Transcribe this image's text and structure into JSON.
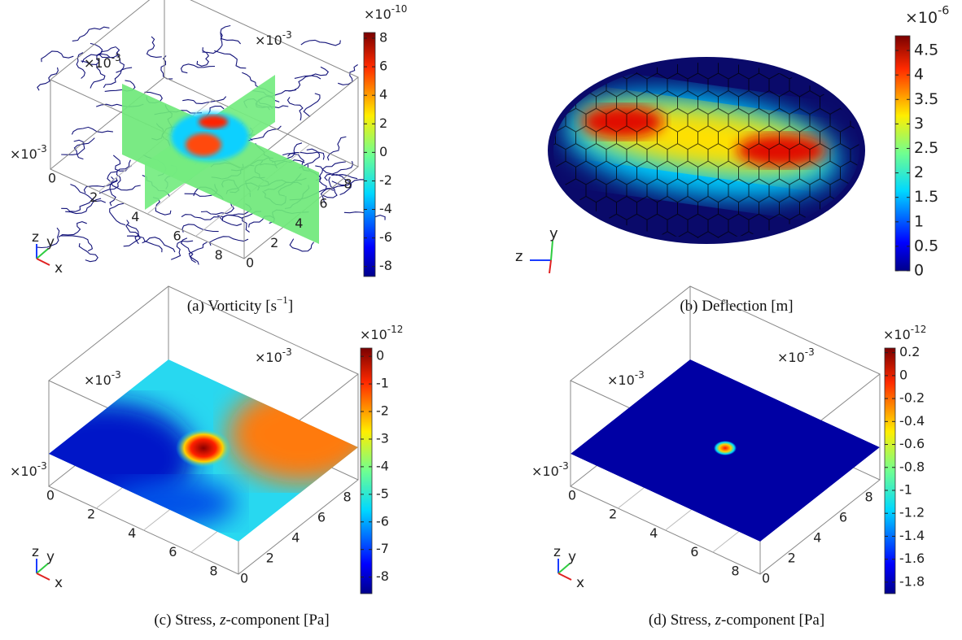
{
  "panels": [
    {
      "caption": [
        {
          "text": "(a) Vorticity [s"
        },
        {
          "text": "−1",
          "sup": true
        },
        {
          "text": "]"
        }
      ],
      "colorbar": {
        "base": "×10",
        "exponent": "-10",
        "clim": [
          -8.7,
          8.4
        ],
        "ticks": [
          8,
          6,
          4,
          2,
          0,
          -2,
          -4,
          -6,
          -8
        ]
      },
      "axis_exponents": [
        {
          "base": "×10",
          "exponent": "-3"
        },
        {
          "base": "×10",
          "exponent": "-3"
        },
        {
          "base": "×10",
          "exponent": "-3"
        }
      ],
      "x_ticks": [
        0,
        2,
        4,
        6,
        8
      ],
      "y_ticks": [
        0,
        2,
        4,
        6,
        8
      ],
      "triad": [
        "z",
        "y",
        "x"
      ]
    },
    {
      "caption": [
        {
          "text": "(b) Deflection [m]"
        }
      ],
      "colorbar": {
        "base": "×10",
        "exponent": "-6",
        "clim": [
          0,
          4.8
        ],
        "ticks": [
          4.5,
          4,
          3.5,
          3,
          2.5,
          2,
          1.5,
          1,
          0.5,
          0
        ]
      },
      "triad": [
        "z",
        "y"
      ]
    },
    {
      "caption": [
        {
          "text": "(c) Stress, "
        },
        {
          "text": "z",
          "italic": true
        },
        {
          "text": "-component [Pa]"
        }
      ],
      "colorbar": {
        "base": "×10",
        "exponent": "-12",
        "clim": [
          -8.6,
          0.3
        ],
        "ticks": [
          0,
          -1,
          -2,
          -3,
          -4,
          -5,
          -6,
          -7,
          -8
        ]
      },
      "axis_exponents": [
        {
          "base": "×10",
          "exponent": "-3"
        },
        {
          "base": "×10",
          "exponent": "-3"
        },
        {
          "base": "×10",
          "exponent": "-3"
        }
      ],
      "x_ticks": [
        0,
        2,
        4,
        6,
        8
      ],
      "y_ticks": [
        0,
        2,
        4,
        6,
        8
      ],
      "triad": [
        "z",
        "y",
        "x"
      ]
    },
    {
      "caption": [
        {
          "text": "(d) Stress, "
        },
        {
          "text": "z",
          "italic": true
        },
        {
          "text": "-component [Pa]"
        }
      ],
      "colorbar": {
        "base": "×10",
        "exponent": "-12",
        "clim": [
          -1.9,
          0.24
        ],
        "ticks": [
          0.2,
          0,
          -0.2,
          -0.4,
          -0.6,
          -0.8,
          -1,
          -1.2,
          -1.4,
          -1.6,
          -1.8
        ]
      },
      "axis_exponents": [
        {
          "base": "×10",
          "exponent": "-3"
        },
        {
          "base": "×10",
          "exponent": "-3"
        },
        {
          "base": "×10",
          "exponent": "-3"
        }
      ],
      "x_ticks": [
        0,
        2,
        4,
        6,
        8
      ],
      "y_ticks": [
        0,
        2,
        4,
        6,
        8
      ],
      "triad": [
        "z",
        "y",
        "x"
      ]
    }
  ]
}
